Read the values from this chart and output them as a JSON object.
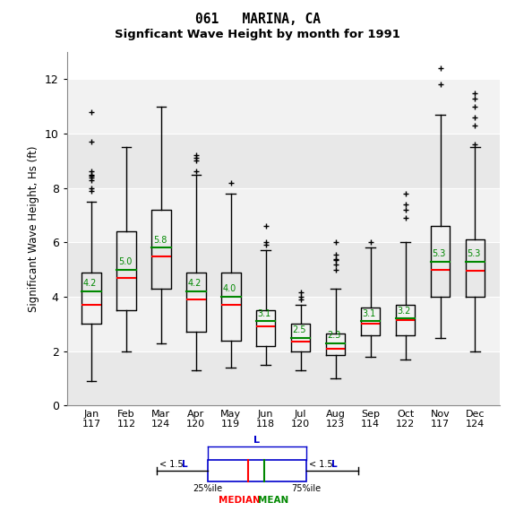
{
  "title1": "061   MARINA, CA",
  "title2": "Signficant Wave Height by month for 1991",
  "ylabel": "Significant Wave Height, Hs (ft)",
  "months": [
    "Jan",
    "Feb",
    "Mar",
    "Apr",
    "May",
    "Jun",
    "Jul",
    "Aug",
    "Sep",
    "Oct",
    "Nov",
    "Dec"
  ],
  "counts": [
    117,
    112,
    124,
    120,
    119,
    118,
    120,
    123,
    114,
    122,
    117,
    124
  ],
  "means": [
    4.2,
    5.0,
    5.8,
    4.2,
    4.0,
    3.1,
    2.5,
    2.3,
    3.1,
    3.2,
    5.3,
    5.3
  ],
  "medians": [
    3.7,
    4.7,
    5.5,
    3.9,
    3.7,
    2.9,
    2.35,
    2.1,
    3.0,
    3.15,
    5.0,
    4.95
  ],
  "q1": [
    3.0,
    3.5,
    4.3,
    2.7,
    2.4,
    2.2,
    2.0,
    1.85,
    2.6,
    2.6,
    4.0,
    4.0
  ],
  "q3": [
    4.9,
    6.4,
    7.2,
    4.9,
    4.9,
    3.5,
    3.0,
    2.65,
    3.6,
    3.7,
    6.6,
    6.1
  ],
  "whislo": [
    0.9,
    2.0,
    2.3,
    1.3,
    1.4,
    1.5,
    1.3,
    1.0,
    1.8,
    1.7,
    2.5,
    2.0
  ],
  "whishi": [
    7.5,
    9.5,
    11.0,
    8.5,
    7.8,
    5.7,
    3.7,
    4.3,
    5.8,
    6.0,
    10.7,
    9.5
  ],
  "fliers": [
    [
      7.9,
      8.0,
      8.3,
      8.4,
      8.45,
      8.5,
      8.6,
      9.7,
      10.8
    ],
    [],
    [],
    [
      9.0,
      9.1,
      9.2,
      8.6
    ],
    [
      8.2
    ],
    [
      5.9,
      6.0,
      6.6
    ],
    [
      3.9,
      4.0,
      4.15
    ],
    [
      5.0,
      5.2,
      5.35,
      5.4,
      5.55,
      6.0
    ],
    [
      6.0
    ],
    [
      6.9,
      7.2,
      7.4,
      7.8
    ],
    [
      11.8,
      12.4
    ],
    [
      10.3,
      10.6,
      11.0,
      11.3,
      11.5,
      9.6
    ]
  ],
  "ylim": [
    0,
    13
  ],
  "yticks": [
    0,
    2,
    4,
    6,
    8,
    10,
    12
  ],
  "band_colors": [
    "#e8e8e8",
    "#f2f2f2",
    "#e8e8e8",
    "#f2f2f2",
    "#e8e8e8",
    "#f2f2f2"
  ],
  "box_color": "#000000",
  "median_color": "#ff0000",
  "mean_color": "#008800",
  "flier_color": "#ff0000",
  "whisker_color": "#000000",
  "legend_box_color": "#0000cc",
  "box_width": 0.55
}
